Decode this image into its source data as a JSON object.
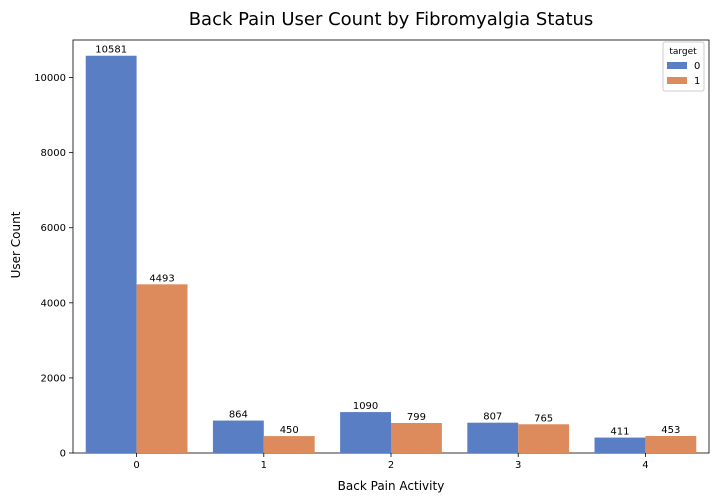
{
  "chart_data": {
    "type": "bar",
    "title": "Back Pain User Count by Fibromyalgia Status",
    "xlabel": "Back Pain Activity",
    "ylabel": "User Count",
    "categories": [
      "0",
      "1",
      "2",
      "3",
      "4"
    ],
    "series": [
      {
        "name": "0",
        "values": [
          10581,
          864,
          1090,
          807,
          411
        ],
        "color": "#5a7ec4"
      },
      {
        "name": "1",
        "values": [
          4493,
          450,
          799,
          765,
          453
        ],
        "color": "#dd8a5c"
      }
    ],
    "ylim": [
      0,
      11000
    ],
    "yticks": [
      0,
      2000,
      4000,
      6000,
      8000,
      10000
    ],
    "legend": {
      "title": "target",
      "placement": "top-right"
    },
    "grid": false
  }
}
